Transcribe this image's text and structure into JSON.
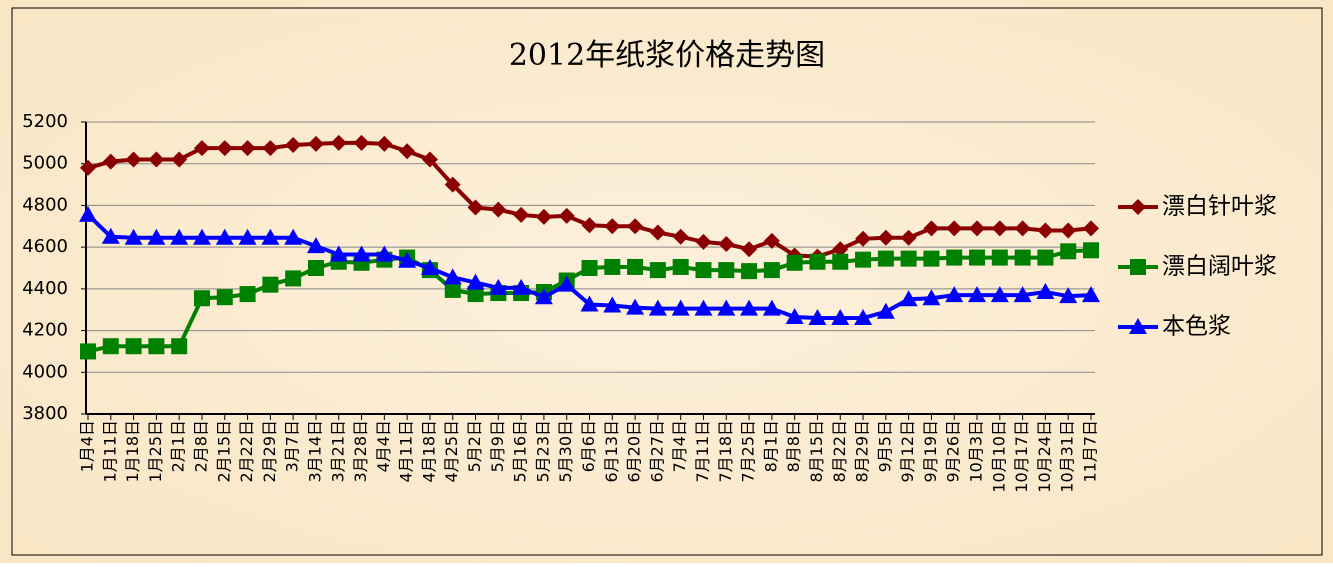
{
  "chart_data": {
    "type": "line",
    "title": "2012年纸浆价格走势图",
    "categories": [
      "1月4日",
      "1月11日",
      "1月18日",
      "1月25日",
      "2月1日",
      "2月8日",
      "2月15日",
      "2月22日",
      "2月29日",
      "3月7日",
      "3月14日",
      "3月21日",
      "3月28日",
      "4月4日",
      "4月11日",
      "4月18日",
      "4月25日",
      "5月2日",
      "5月9日",
      "5月16日",
      "5月23日",
      "5月30日",
      "6月6日",
      "6月13日",
      "6月20日",
      "6月27日",
      "7月4日",
      "7月11日",
      "7月18日",
      "7月25日",
      "8月1日",
      "8月8日",
      "8月15日",
      "8月22日",
      "8月29日",
      "9月5日",
      "9月12日",
      "9月19日",
      "9月26日",
      "10月3日",
      "10月10日",
      "10月17日",
      "10月24日",
      "10月31日",
      "11月7日"
    ],
    "series": [
      {
        "name": "漂白针叶浆",
        "color": "#8b0000",
        "marker": "diamond",
        "values": [
          4980,
          5010,
          5020,
          5020,
          5020,
          5075,
          5075,
          5075,
          5075,
          5090,
          5095,
          5100,
          5100,
          5095,
          5060,
          5020,
          4900,
          4790,
          4780,
          4755,
          4745,
          4750,
          4705,
          4700,
          4700,
          4670,
          4650,
          4625,
          4615,
          4590,
          4630,
          4560,
          4555,
          4590,
          4640,
          4645,
          4645,
          4690,
          4690,
          4690,
          4690,
          4690,
          4680,
          4680,
          4690
        ]
      },
      {
        "name": "漂白阔叶浆",
        "color": "#008000",
        "marker": "square",
        "values": [
          4100,
          4125,
          4125,
          4125,
          4125,
          4355,
          4360,
          4375,
          4420,
          4450,
          4500,
          4530,
          4525,
          4540,
          4550,
          4490,
          4395,
          4375,
          4380,
          4380,
          4385,
          4440,
          4500,
          4505,
          4505,
          4490,
          4505,
          4490,
          4490,
          4485,
          4490,
          4525,
          4530,
          4530,
          4540,
          4545,
          4545,
          4545,
          4550,
          4550,
          4550,
          4550,
          4550,
          4580,
          4585
        ]
      },
      {
        "name": "本色浆",
        "color": "#0000ff",
        "marker": "triangle",
        "values": [
          4755,
          4650,
          4645,
          4645,
          4645,
          4645,
          4645,
          4645,
          4645,
          4645,
          4605,
          4565,
          4565,
          4565,
          4535,
          4500,
          4455,
          4430,
          4405,
          4405,
          4360,
          4420,
          4325,
          4320,
          4310,
          4305,
          4305,
          4305,
          4305,
          4305,
          4305,
          4265,
          4260,
          4260,
          4260,
          4290,
          4350,
          4355,
          4370,
          4370,
          4370,
          4370,
          4385,
          4365,
          4370
        ]
      }
    ],
    "ylim": [
      3800,
      5200
    ],
    "yticks": [
      3800,
      4000,
      4200,
      4400,
      4600,
      4800,
      5000,
      5200
    ],
    "grid": true,
    "legend": "right"
  }
}
